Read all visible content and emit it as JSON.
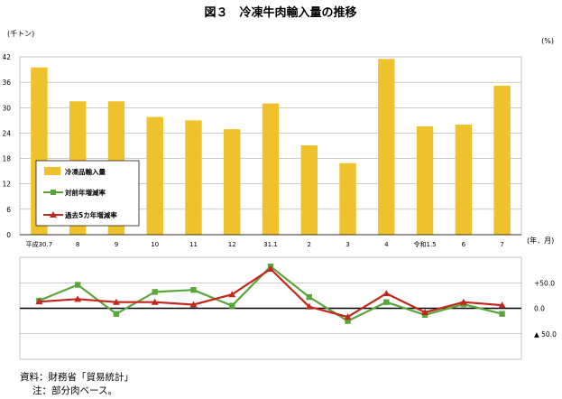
{
  "title": "図３　冷凍牛肉輸入量の推移",
  "left_unit": "(千トン)",
  "right_unit": "(%)",
  "x_unit": "(年．月)",
  "colors": {
    "bar": "#eec12d",
    "yoy": "#5aa63c",
    "avg5": "#c3261d",
    "grid": "#9a9a9a",
    "axis": "#000000"
  },
  "legend": {
    "bar": "冷凍品輸入量",
    "yoy": "対前年増減率",
    "avg5": "過去5カ年増減率"
  },
  "notes": {
    "source": "資料：財務省「貿易統計」",
    "note": "注：部分肉ベース。"
  },
  "chart_data": [
    {
      "type": "bar",
      "categories": [
        "平成30.7",
        "8",
        "9",
        "10",
        "11",
        "12",
        "31.1",
        "2",
        "3",
        "4",
        "令和1.5",
        "6",
        "7"
      ],
      "series": [
        {
          "name": "冷凍品輸入量",
          "values": [
            39.5,
            31.5,
            31.5,
            27.8,
            27.0,
            24.9,
            31.0,
            21.1,
            16.9,
            41.5,
            25.6,
            26.0,
            35.2
          ]
        }
      ],
      "ylim": [
        0,
        42
      ],
      "yticks": [
        0,
        6,
        12,
        18,
        24,
        30,
        36,
        42
      ],
      "ylabel": "(千トン)",
      "grid": true,
      "legend_position": "left-middle"
    },
    {
      "type": "line",
      "categories": [
        "平成30.7",
        "8",
        "9",
        "10",
        "11",
        "12",
        "31.1",
        "2",
        "3",
        "4",
        "令和1.5",
        "6",
        "7"
      ],
      "series": [
        {
          "name": "対前年増減率",
          "values": [
            15.0,
            46.0,
            -11.0,
            32.0,
            36.0,
            5.0,
            82.0,
            22.0,
            -25.0,
            12.0,
            -13.0,
            8.0,
            -11.0
          ]
        },
        {
          "name": "過去5カ年増減率",
          "values": [
            13.0,
            18.0,
            12.0,
            12.0,
            7.0,
            27.0,
            77.0,
            3.0,
            -17.0,
            29.0,
            -8.0,
            12.0,
            6.0
          ]
        }
      ],
      "ylim": [
        -100,
        100
      ],
      "yticks": [
        50,
        0,
        -50
      ],
      "ytick_labels": [
        "+50.0",
        "0.0",
        "▲ 50.0"
      ],
      "ylabel": "(%)",
      "grid": true
    }
  ]
}
